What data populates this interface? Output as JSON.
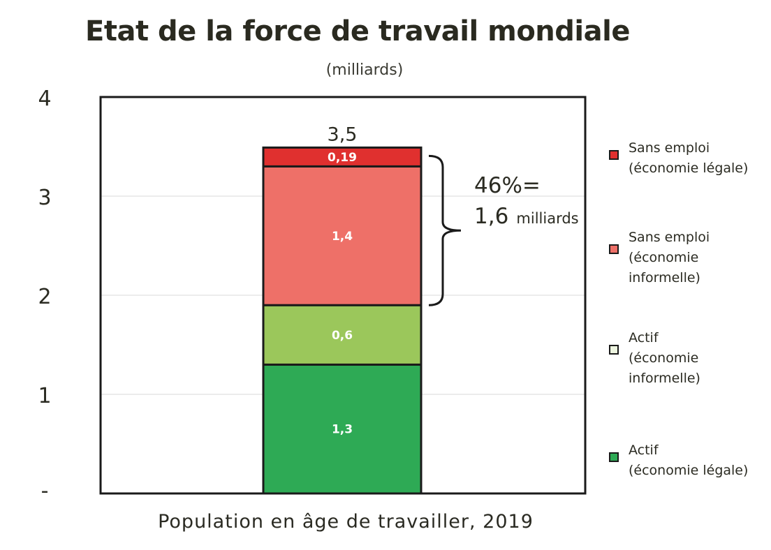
{
  "chart_data": {
    "type": "bar",
    "stacked": true,
    "title": "Etat de la force de travail mondiale",
    "subtitle": "(milliards)",
    "xlabel": "Population en âge de travailler, 2019",
    "ylim": [
      0,
      4
    ],
    "yticks": [
      {
        "value": 4,
        "label": "4"
      },
      {
        "value": 3,
        "label": "3"
      },
      {
        "value": 2,
        "label": "2"
      },
      {
        "value": 1,
        "label": "1"
      },
      {
        "value": 0,
        "label": "-"
      }
    ],
    "grid": true,
    "legend_position": "right",
    "total": {
      "value": 3.5,
      "label": "3,5"
    },
    "segments": [
      {
        "name_lines": [
          "Actif",
          "(économie légale)"
        ],
        "value": 1.3,
        "label": "1,3",
        "color": "#2eaa55"
      },
      {
        "name_lines": [
          "Actif",
          "(économie",
          "informelle)"
        ],
        "value": 0.6,
        "label": "0,6",
        "color": "#9bc75b"
      },
      {
        "name_lines": [
          "Sans emploi",
          "(économie",
          "informelle)"
        ],
        "value": 1.4,
        "label": "1,4",
        "color": "#ee7068"
      },
      {
        "name_lines": [
          "Sans emploi",
          "(économie légale)"
        ],
        "value": 0.19,
        "label": "0,19",
        "color": "#e0302f"
      }
    ],
    "annotation": {
      "line1": "46%=",
      "value": "1,6",
      "unit": "milliards"
    }
  }
}
